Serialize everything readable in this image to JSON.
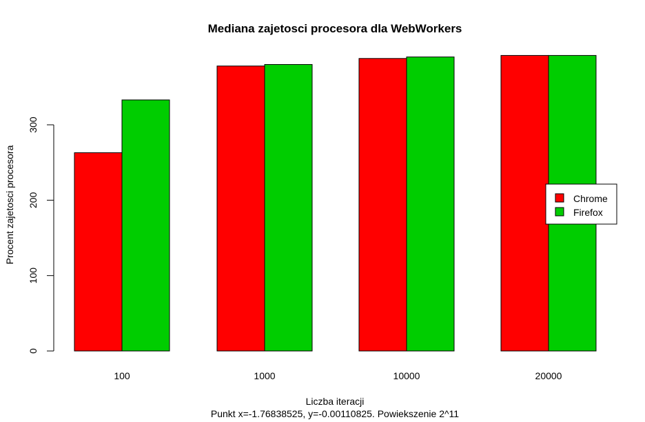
{
  "chart_data": {
    "type": "bar",
    "title": "Mediana zajetosci procesora dla WebWorkers",
    "xlabel": "Liczba iteracji",
    "subtitle": "Punkt x=-1.76838525, y=-0.00110825. Powiekszenie 2^11",
    "ylabel": "Procent zajetosci procesora",
    "categories": [
      "100",
      "1000",
      "10000",
      "20000"
    ],
    "series": [
      {
        "name": "Chrome",
        "color": "#ff0000",
        "values": [
          263,
          378,
          388,
          392
        ]
      },
      {
        "name": "Firefox",
        "color": "#00cd00",
        "values": [
          333,
          380,
          390,
          392
        ]
      }
    ],
    "ylim": [
      0,
      392
    ],
    "yticks": [
      0,
      100,
      200,
      300
    ],
    "grid": false,
    "legend_position": "right"
  }
}
